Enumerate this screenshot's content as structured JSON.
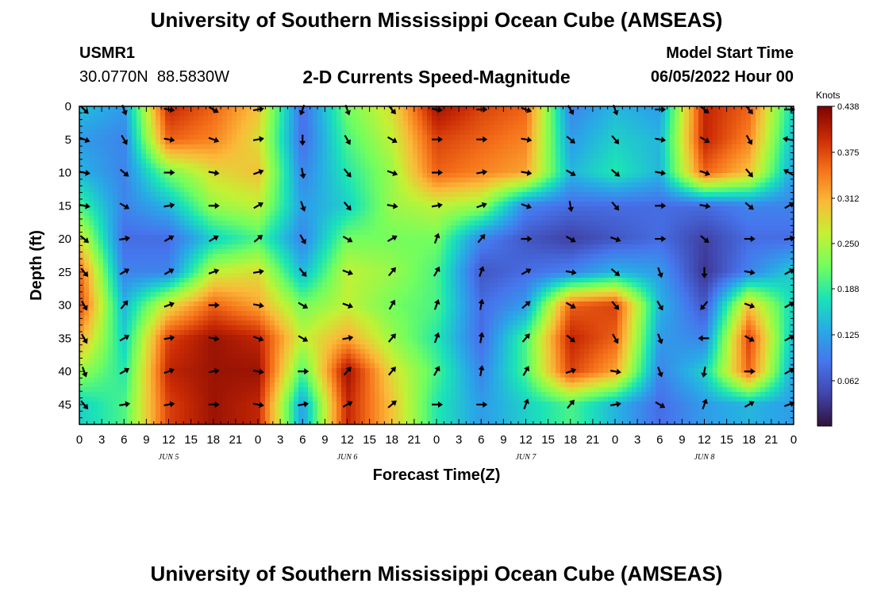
{
  "header": {
    "title": "University of Southern Mississippi Ocean Cube (AMSEAS)",
    "station_id": "USMR1",
    "station_coords": "30.0770N  88.5830W",
    "plot_title": "2-D Currents Speed-Magnitude",
    "start_label": "Model Start Time",
    "start_value": "06/05/2022 Hour 00"
  },
  "footer": {
    "title": "University of Southern Mississippi Ocean Cube (AMSEAS)"
  },
  "chart_data": {
    "type": "heatmap",
    "title": "2-D Currents Speed-Magnitude",
    "xlabel": "Forecast Time(Z)",
    "ylabel": "Depth (ft)",
    "x_unit": "forecast hour from model start",
    "xlim": [
      0,
      96
    ],
    "ylim": [
      48,
      0
    ],
    "x_tick_step_hours": 3,
    "x_tick_labels": [
      "0",
      "3",
      "6",
      "9",
      "12",
      "15",
      "18",
      "21",
      "0",
      "3",
      "6",
      "9",
      "12",
      "15",
      "18",
      "21",
      "0",
      "3",
      "6",
      "9",
      "12",
      "15",
      "18",
      "21",
      "0",
      "3",
      "6",
      "9",
      "12",
      "15",
      "18",
      "21",
      "0"
    ],
    "day_labels": [
      {
        "label": "JUN 5",
        "hour": 12
      },
      {
        "label": "JUN 6",
        "hour": 36
      },
      {
        "label": "JUN 7",
        "hour": 60
      },
      {
        "label": "JUN 8",
        "hour": 84
      }
    ],
    "y_ticks": [
      0,
      5,
      10,
      15,
      20,
      25,
      30,
      35,
      40,
      45
    ],
    "colorbar": {
      "title": "Knots",
      "min": 0.0,
      "max": 0.438,
      "tick_values": [
        0.438,
        0.375,
        0.312,
        0.25,
        0.188,
        0.125,
        0.062
      ],
      "tick_labels": [
        "0.438",
        "0.375",
        "0.312",
        "0.250",
        "0.188",
        "0.125",
        "0.062"
      ]
    },
    "grid_hours": [
      0,
      6,
      12,
      18,
      24,
      30,
      36,
      42,
      48,
      54,
      60,
      66,
      72,
      78,
      84,
      90,
      96
    ],
    "grid_depths_ft": [
      0,
      5,
      10,
      15,
      20,
      25,
      30,
      35,
      40,
      45
    ],
    "speed_knots": [
      [
        0.15,
        0.12,
        0.4,
        0.36,
        0.3,
        0.08,
        0.22,
        0.28,
        0.42,
        0.38,
        0.36,
        0.1,
        0.14,
        0.12,
        0.4,
        0.36,
        0.16
      ],
      [
        0.12,
        0.1,
        0.36,
        0.34,
        0.28,
        0.08,
        0.2,
        0.26,
        0.38,
        0.36,
        0.34,
        0.12,
        0.16,
        0.14,
        0.4,
        0.34,
        0.14
      ],
      [
        0.14,
        0.1,
        0.22,
        0.28,
        0.3,
        0.1,
        0.18,
        0.24,
        0.36,
        0.34,
        0.32,
        0.14,
        0.18,
        0.14,
        0.36,
        0.3,
        0.12
      ],
      [
        0.2,
        0.1,
        0.14,
        0.24,
        0.26,
        0.12,
        0.16,
        0.24,
        0.26,
        0.24,
        0.1,
        0.08,
        0.08,
        0.08,
        0.08,
        0.1,
        0.1
      ],
      [
        0.28,
        0.08,
        0.08,
        0.16,
        0.2,
        0.1,
        0.22,
        0.22,
        0.22,
        0.1,
        0.06,
        0.04,
        0.06,
        0.08,
        0.04,
        0.08,
        0.08
      ],
      [
        0.36,
        0.1,
        0.1,
        0.26,
        0.28,
        0.14,
        0.26,
        0.24,
        0.2,
        0.06,
        0.08,
        0.1,
        0.14,
        0.12,
        0.03,
        0.1,
        0.16
      ],
      [
        0.38,
        0.14,
        0.28,
        0.36,
        0.32,
        0.22,
        0.26,
        0.22,
        0.2,
        0.08,
        0.12,
        0.36,
        0.38,
        0.14,
        0.06,
        0.3,
        0.16
      ],
      [
        0.32,
        0.16,
        0.38,
        0.42,
        0.4,
        0.26,
        0.32,
        0.24,
        0.18,
        0.08,
        0.2,
        0.4,
        0.36,
        0.12,
        0.1,
        0.38,
        0.14
      ],
      [
        0.24,
        0.18,
        0.4,
        0.42,
        0.42,
        0.2,
        0.42,
        0.28,
        0.2,
        0.1,
        0.2,
        0.38,
        0.32,
        0.1,
        0.16,
        0.36,
        0.12
      ],
      [
        0.16,
        0.2,
        0.38,
        0.42,
        0.4,
        0.12,
        0.4,
        0.3,
        0.18,
        0.12,
        0.16,
        0.2,
        0.14,
        0.08,
        0.12,
        0.14,
        0.12
      ]
    ],
    "direction_deg": [
      [
        135,
        160,
        100,
        120,
        80,
        200,
        160,
        140,
        100,
        90,
        110,
        150,
        160,
        90,
        130,
        140,
        90
      ],
      [
        110,
        150,
        100,
        110,
        80,
        180,
        150,
        120,
        90,
        90,
        100,
        130,
        140,
        100,
        120,
        150,
        280
      ],
      [
        100,
        130,
        90,
        100,
        70,
        170,
        140,
        110,
        90,
        80,
        100,
        120,
        130,
        100,
        110,
        140,
        300
      ],
      [
        100,
        120,
        80,
        90,
        60,
        160,
        140,
        100,
        80,
        70,
        110,
        170,
        140,
        90,
        100,
        130,
        60
      ],
      [
        130,
        80,
        60,
        60,
        50,
        150,
        120,
        60,
        20,
        40,
        90,
        120,
        110,
        90,
        130,
        90,
        80
      ],
      [
        140,
        60,
        60,
        70,
        80,
        140,
        110,
        40,
        30,
        20,
        60,
        100,
        130,
        160,
        180,
        100,
        60
      ],
      [
        150,
        40,
        70,
        90,
        100,
        120,
        110,
        30,
        20,
        10,
        50,
        120,
        140,
        150,
        220,
        110,
        60
      ],
      [
        150,
        60,
        80,
        100,
        110,
        120,
        80,
        40,
        20,
        10,
        40,
        130,
        150,
        160,
        270,
        120,
        60
      ],
      [
        160,
        60,
        70,
        80,
        100,
        90,
        40,
        40,
        30,
        10,
        30,
        70,
        100,
        160,
        190,
        90,
        60
      ],
      [
        140,
        80,
        80,
        90,
        100,
        80,
        60,
        50,
        90,
        90,
        20,
        40,
        80,
        120,
        20,
        60,
        70
      ]
    ]
  }
}
